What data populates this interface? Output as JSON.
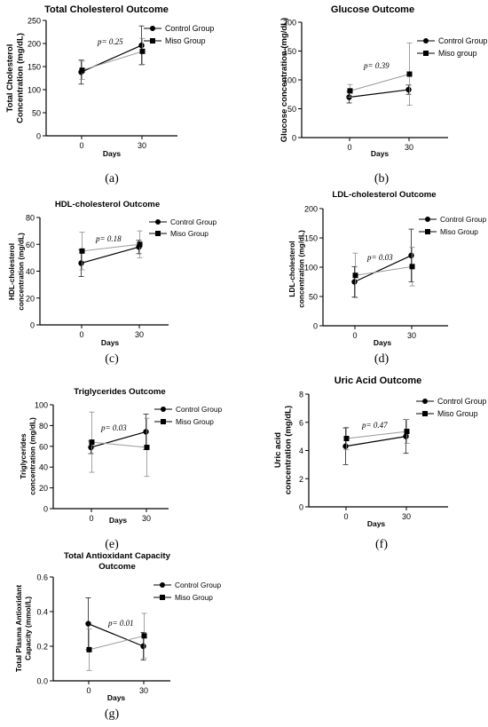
{
  "chart_data": [
    {
      "panel": "(a)",
      "type": "line",
      "title": [
        "Total Cholesterol Outcome"
      ],
      "ylabel": [
        "Total Cholesterol",
        "Concentration (mg/dL)"
      ],
      "xlabel": "Days",
      "categories": [
        "0",
        "30"
      ],
      "ylim": [
        0,
        250
      ],
      "yticks": [
        0,
        50,
        100,
        150,
        200,
        250
      ],
      "p_value": "p= 0.25",
      "legend": "top-right",
      "series": [
        {
          "name": "Control Group",
          "marker": "circle",
          "values": [
            138,
            196
          ],
          "err": [
            26,
            42
          ]
        },
        {
          "name": "Miso Group",
          "marker": "square",
          "values": [
            142,
            183
          ],
          "err": [
            20,
            28
          ]
        }
      ]
    },
    {
      "panel": "(b)",
      "type": "line",
      "title": [
        "Glucose Outcome"
      ],
      "ylabel": [
        "Glucose concentration (mg/dL)"
      ],
      "xlabel": "Days",
      "categories": [
        "0",
        "30"
      ],
      "ylim": [
        0,
        200
      ],
      "yticks": [
        0,
        50,
        100,
        150,
        200
      ],
      "p_value": "p= 0.39",
      "legend": "top-right",
      "series": [
        {
          "name": "Control Group",
          "marker": "circle",
          "values": [
            70,
            83
          ],
          "err": [
            10,
            8
          ]
        },
        {
          "name": "Miso group",
          "marker": "square",
          "values": [
            81,
            110
          ],
          "err": [
            11,
            54
          ]
        }
      ]
    },
    {
      "panel": "(c)",
      "type": "line",
      "title": [
        "HDL-cholesterol Outcome"
      ],
      "ylabel": [
        "HDL-cholesterol",
        "concentration (mg/dL)"
      ],
      "xlabel": "Days",
      "categories": [
        "0",
        "30"
      ],
      "ylim": [
        0,
        80
      ],
      "yticks": [
        0,
        20,
        40,
        60,
        80
      ],
      "p_value": "p= 0.18",
      "legend": "top-right",
      "series": [
        {
          "name": "Control Group",
          "marker": "circle",
          "values": [
            46,
            58
          ],
          "err": [
            10,
            5
          ]
        },
        {
          "name": "Miso Group",
          "marker": "square",
          "values": [
            55,
            60
          ],
          "err": [
            14,
            10
          ]
        }
      ]
    },
    {
      "panel": "(d)",
      "type": "line",
      "title": [
        "LDL-cholesterol Outcome"
      ],
      "ylabel": [
        "LDL-cholesterol",
        "concentration (mg/dL)"
      ],
      "xlabel": "Days",
      "categories": [
        "0",
        "30"
      ],
      "ylim": [
        0,
        200
      ],
      "yticks": [
        0,
        50,
        100,
        150,
        200
      ],
      "p_value": "p= 0.03",
      "legend": "top-right",
      "series": [
        {
          "name": "Control Group",
          "marker": "circle",
          "values": [
            75,
            120
          ],
          "err": [
            26,
            45
          ]
        },
        {
          "name": "Miso Group",
          "marker": "square",
          "values": [
            86,
            101
          ],
          "err": [
            38,
            33
          ]
        }
      ]
    },
    {
      "panel": "(e)",
      "type": "line",
      "title": [
        "Triglycerides Outcome"
      ],
      "ylabel": [
        "Triglycerides",
        "concentration (mg/dL)"
      ],
      "xlabel": "Days",
      "categories": [
        "0",
        "30"
      ],
      "ylim": [
        0,
        100
      ],
      "yticks": [
        0,
        20,
        40,
        60,
        80,
        100
      ],
      "p_value": "p= 0.03",
      "legend": "top-right",
      "series": [
        {
          "name": "Control Group",
          "marker": "circle",
          "values": [
            59,
            74
          ],
          "err": [
            6,
            17
          ]
        },
        {
          "name": "Miso Group",
          "marker": "square",
          "values": [
            64,
            59
          ],
          "err": [
            29,
            28
          ]
        }
      ]
    },
    {
      "panel": "(f)",
      "type": "line",
      "title": [
        "Uric Acid Outcome"
      ],
      "ylabel": [
        "Uric acid",
        "concentration (mg/dL)"
      ],
      "xlabel": "Days",
      "categories": [
        "0",
        "30"
      ],
      "ylim": [
        0,
        8
      ],
      "yticks": [
        0,
        2,
        4,
        6,
        8
      ],
      "p_value": "p= 0.47",
      "legend": "top-right",
      "series": [
        {
          "name": "Control Group",
          "marker": "circle",
          "values": [
            4.3,
            5.0
          ],
          "err": [
            1.3,
            1.2
          ]
        },
        {
          "name": "Miso Group",
          "marker": "square",
          "values": [
            4.85,
            5.35
          ],
          "err": [
            0.8,
            0.85
          ]
        }
      ]
    },
    {
      "panel": "(g)",
      "type": "line",
      "title": [
        "Total Antioxidant Capacity",
        "Outcome"
      ],
      "ylabel": [
        "Total Plasma Antioxidant",
        "Capacity (mmol/L)"
      ],
      "xlabel": "Days",
      "categories": [
        "0",
        "30"
      ],
      "ylim": [
        0,
        0.6
      ],
      "yticks": [
        0.0,
        0.2,
        0.4,
        0.6
      ],
      "p_value": "p= 0.01",
      "legend": "top-right",
      "series": [
        {
          "name": "Control Group",
          "marker": "circle",
          "values": [
            0.33,
            0.2
          ],
          "err": [
            0.15,
            0.08
          ]
        },
        {
          "name": "Miso Group",
          "marker": "square",
          "values": [
            0.18,
            0.26
          ],
          "err": [
            0.12,
            0.13
          ]
        }
      ]
    }
  ]
}
